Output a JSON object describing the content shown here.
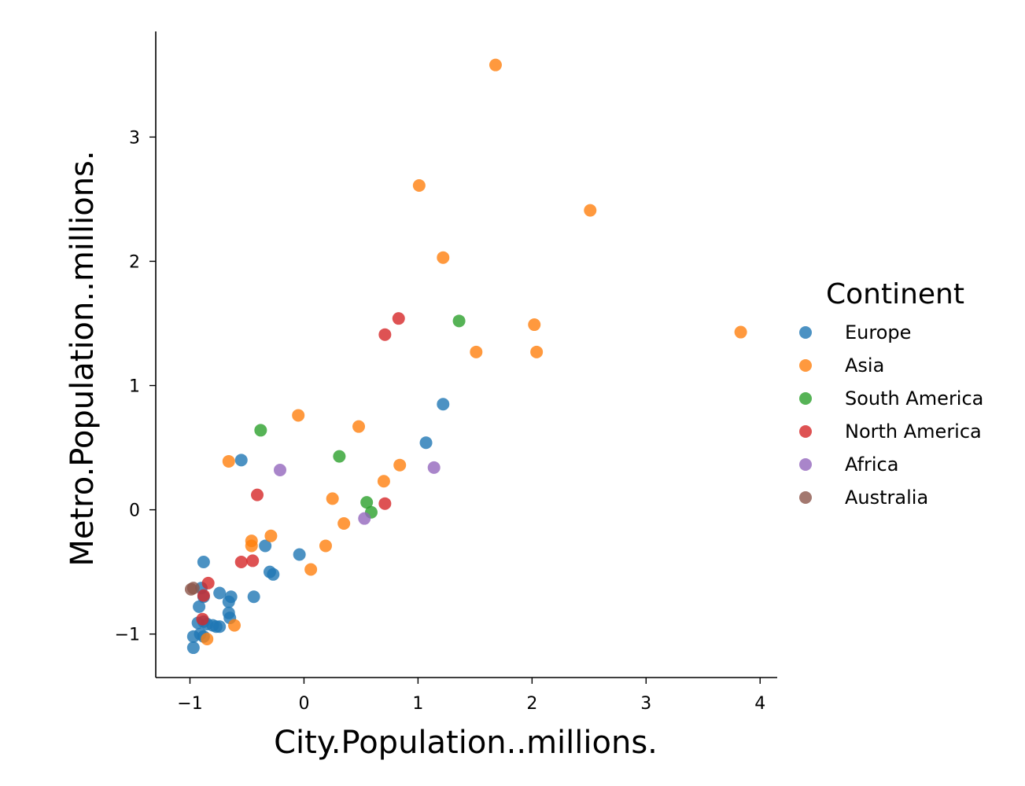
{
  "chart_data": {
    "type": "scatter",
    "xlabel": "City.Population..millions.",
    "ylabel": "Metro.Population..millions.",
    "xlim": [
      -1.3,
      4.15
    ],
    "ylim": [
      -1.35,
      3.85
    ],
    "xticks": [
      -1,
      0,
      1,
      2,
      3,
      4
    ],
    "yticks": [
      -1,
      0,
      1,
      2,
      3
    ],
    "xtick_labels": [
      "−1",
      "0",
      "1",
      "2",
      "3",
      "4"
    ],
    "ytick_labels": [
      "−1",
      "0",
      "1",
      "2",
      "3"
    ],
    "grid": false,
    "legend": {
      "title": "Continent",
      "placement": "right"
    },
    "series": [
      {
        "name": "Europe",
        "color": "#1f77b4",
        "points": [
          [
            1.22,
            0.85
          ],
          [
            1.07,
            0.54
          ],
          [
            -0.55,
            0.4
          ],
          [
            -0.88,
            -0.42
          ],
          [
            -0.04,
            -0.36
          ],
          [
            -0.34,
            -0.29
          ],
          [
            -0.3,
            -0.5
          ],
          [
            -0.27,
            -0.52
          ],
          [
            -0.44,
            -0.7
          ],
          [
            -0.74,
            -0.67
          ],
          [
            -0.64,
            -0.7
          ],
          [
            -0.66,
            -0.74
          ],
          [
            -0.66,
            -0.83
          ],
          [
            -0.65,
            -0.87
          ],
          [
            -0.92,
            -0.78
          ],
          [
            -0.93,
            -0.91
          ],
          [
            -0.88,
            -0.9
          ],
          [
            -0.85,
            -0.92
          ],
          [
            -0.8,
            -0.93
          ],
          [
            -0.77,
            -0.94
          ],
          [
            -0.74,
            -0.94
          ],
          [
            -0.97,
            -1.02
          ],
          [
            -0.91,
            -1.0
          ],
          [
            -0.88,
            -1.02
          ],
          [
            -0.97,
            -1.11
          ],
          [
            -0.88,
            -0.7
          ],
          [
            -0.9,
            -0.63
          ]
        ]
      },
      {
        "name": "Asia",
        "color": "#ff7f0e",
        "points": [
          [
            1.68,
            3.58
          ],
          [
            1.01,
            2.61
          ],
          [
            2.51,
            2.41
          ],
          [
            1.22,
            2.03
          ],
          [
            2.02,
            1.49
          ],
          [
            3.83,
            1.43
          ],
          [
            1.51,
            1.27
          ],
          [
            2.04,
            1.27
          ],
          [
            -0.05,
            0.76
          ],
          [
            0.48,
            0.67
          ],
          [
            -0.66,
            0.39
          ],
          [
            0.84,
            0.36
          ],
          [
            0.7,
            0.23
          ],
          [
            0.25,
            0.09
          ],
          [
            0.35,
            -0.11
          ],
          [
            -0.29,
            -0.21
          ],
          [
            -0.46,
            -0.25
          ],
          [
            -0.46,
            -0.29
          ],
          [
            0.19,
            -0.29
          ],
          [
            0.06,
            -0.48
          ],
          [
            -0.61,
            -0.93
          ],
          [
            -0.85,
            -1.04
          ]
        ]
      },
      {
        "name": "South America",
        "color": "#2ca02c",
        "points": [
          [
            1.36,
            1.52
          ],
          [
            -0.38,
            0.64
          ],
          [
            0.31,
            0.43
          ],
          [
            0.55,
            0.06
          ],
          [
            0.59,
            -0.02
          ]
        ]
      },
      {
        "name": "North America",
        "color": "#d62728",
        "points": [
          [
            0.83,
            1.54
          ],
          [
            0.71,
            1.41
          ],
          [
            -0.41,
            0.12
          ],
          [
            0.71,
            0.05
          ],
          [
            -0.55,
            -0.42
          ],
          [
            -0.45,
            -0.41
          ],
          [
            -0.84,
            -0.59
          ],
          [
            -0.88,
            -0.69
          ],
          [
            -0.89,
            -0.88
          ]
        ]
      },
      {
        "name": "Africa",
        "color": "#9467bd",
        "points": [
          [
            -0.21,
            0.32
          ],
          [
            1.14,
            0.34
          ],
          [
            0.53,
            -0.07
          ]
        ]
      },
      {
        "name": "Australia",
        "color": "#8c564b",
        "points": [
          [
            -0.99,
            -0.64
          ],
          [
            -0.97,
            -0.63
          ]
        ]
      }
    ]
  }
}
